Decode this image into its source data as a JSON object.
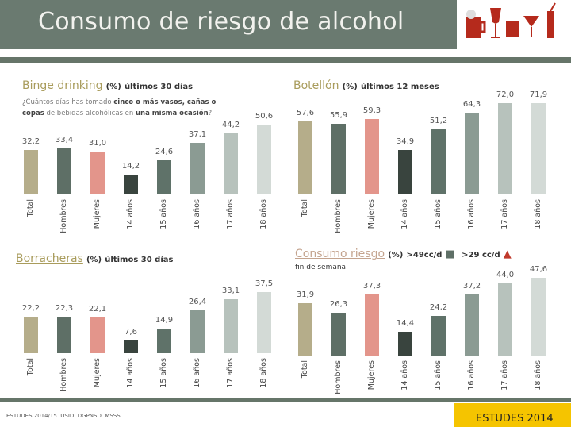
{
  "header": {
    "title": "Consumo de riesgo de alcohol"
  },
  "colors": [
    "#b5ad8a",
    "#5e6f66",
    "#e3958b",
    "#39443e",
    "#5f7269",
    "#8b9b93",
    "#b7c2bc",
    "#d3dad6"
  ],
  "chart_data": [
    {
      "type": "bar",
      "title": "Binge drinking",
      "unit": "(%)",
      "period": "últimos 30 días",
      "question": [
        "¿Cuántos días has tomado ",
        "cinco o más vasos, cañas o copas",
        " de bebidas alcohólicas en ",
        "una misma ocasión",
        "?"
      ],
      "categories": [
        "Total",
        "Hombres",
        "Mujeres",
        "14 años",
        "15 años",
        "16 años",
        "17 años",
        "18 años"
      ],
      "values": [
        32.2,
        33.4,
        31.0,
        14.2,
        24.6,
        37.1,
        44.2,
        50.6
      ],
      "labels": [
        "32,2",
        "33,4",
        "31,0",
        "14,2",
        "24,6",
        "37,1",
        "44,2",
        "50,6"
      ]
    },
    {
      "type": "bar",
      "title": "Botellón",
      "unit": "(%)",
      "period": "últimos 12 meses",
      "categories": [
        "Total",
        "Hombres",
        "Mujeres",
        "14 años",
        "15 años",
        "16 años",
        "17 años",
        "18 años"
      ],
      "values": [
        57.6,
        55.9,
        59.3,
        34.9,
        51.2,
        64.3,
        72.0,
        71.9
      ],
      "labels": [
        "57,6",
        "55,9",
        "59,3",
        "34,9",
        "51,2",
        "64,3",
        "72,0",
        "71,9"
      ]
    },
    {
      "type": "bar",
      "title": "Borracheras",
      "unit": "(%)",
      "period": "últimos 30 días",
      "categories": [
        "Total",
        "Hombres",
        "Mujeres",
        "14 años",
        "15 años",
        "16 años",
        "17 años",
        "18 años"
      ],
      "values": [
        22.2,
        22.3,
        22.1,
        7.6,
        14.9,
        26.4,
        33.1,
        37.5
      ],
      "labels": [
        "22,2",
        "22,3",
        "22,1",
        "7,6",
        "14,9",
        "26,4",
        "33,1",
        "37,5"
      ]
    },
    {
      "type": "bar",
      "title": "Consumo riesgo",
      "unit": "(%)",
      "male_threshold": ">49cc/d",
      "female_threshold": ">29 cc/d",
      "period": "fin de semana",
      "categories": [
        "Total",
        "Hombres",
        "Mujeres",
        "14 años",
        "15 años",
        "16 años",
        "17 años",
        "18 años"
      ],
      "values": [
        31.9,
        26.3,
        37.3,
        14.4,
        24.2,
        37.2,
        44.0,
        47.6
      ],
      "labels": [
        "31,9",
        "26,3",
        "37,3",
        "14,4",
        "24,2",
        "37,2",
        "44,0",
        "47,6"
      ]
    }
  ],
  "footer": {
    "source": "ESTUDES 2014/15. USID. DGPNSD. MSSSI",
    "watermark": "ESTUDES 2014"
  }
}
